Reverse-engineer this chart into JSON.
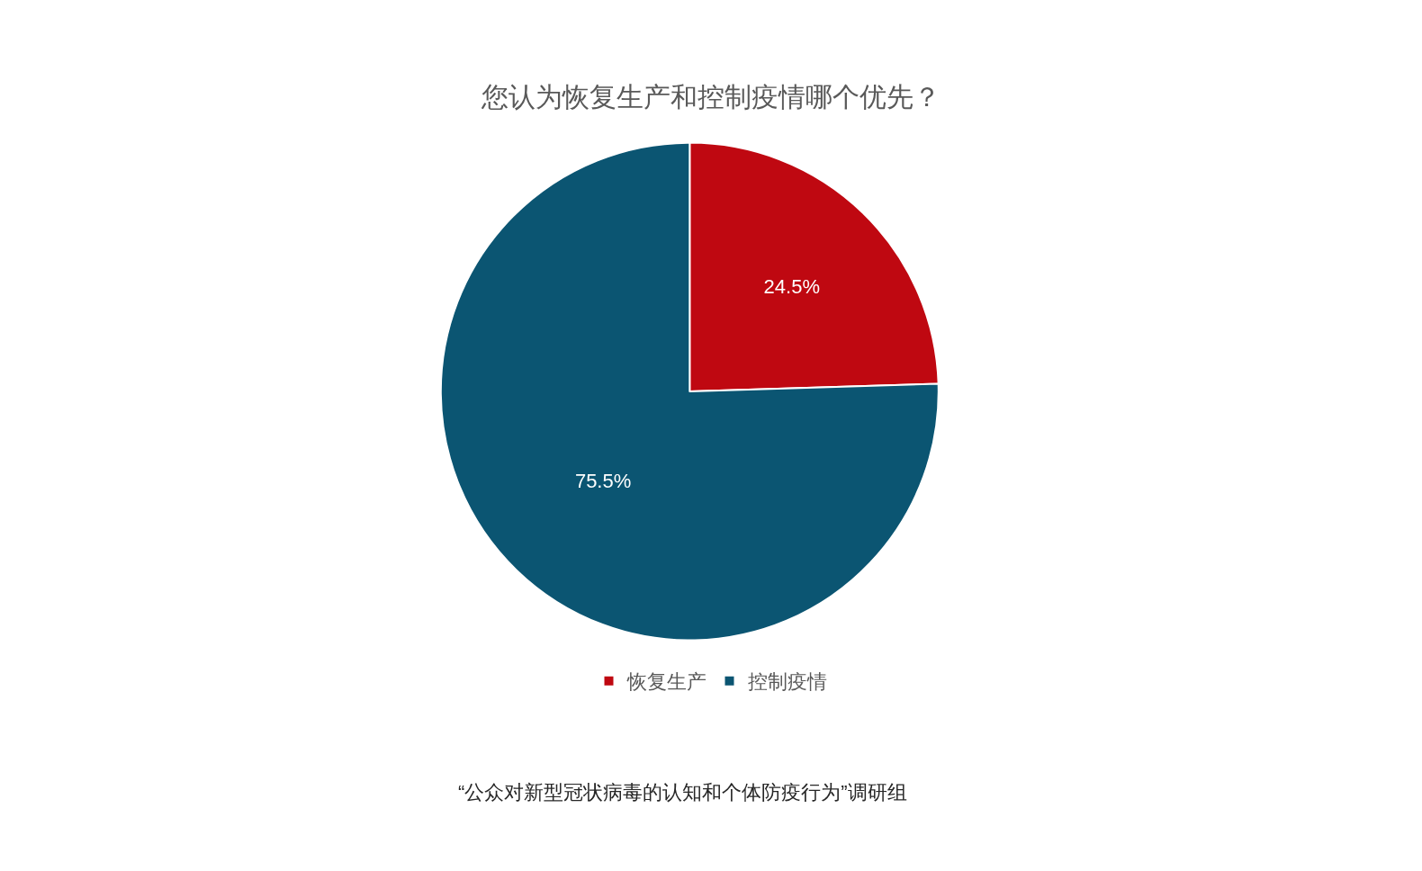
{
  "chart_data": {
    "type": "pie",
    "title": "您认为恢复生产和控制疫情哪个优先？",
    "categories": [
      "恢复生产",
      "控制疫情"
    ],
    "values": [
      24.5,
      75.5
    ],
    "colors": [
      "#bf0811",
      "#0b5572"
    ],
    "value_labels": [
      "24.5%",
      "75.5%"
    ],
    "legend": "bottom",
    "annotations": [
      "“公众对新型冠状病毒的认知和个体防疫行为”调研组"
    ]
  }
}
